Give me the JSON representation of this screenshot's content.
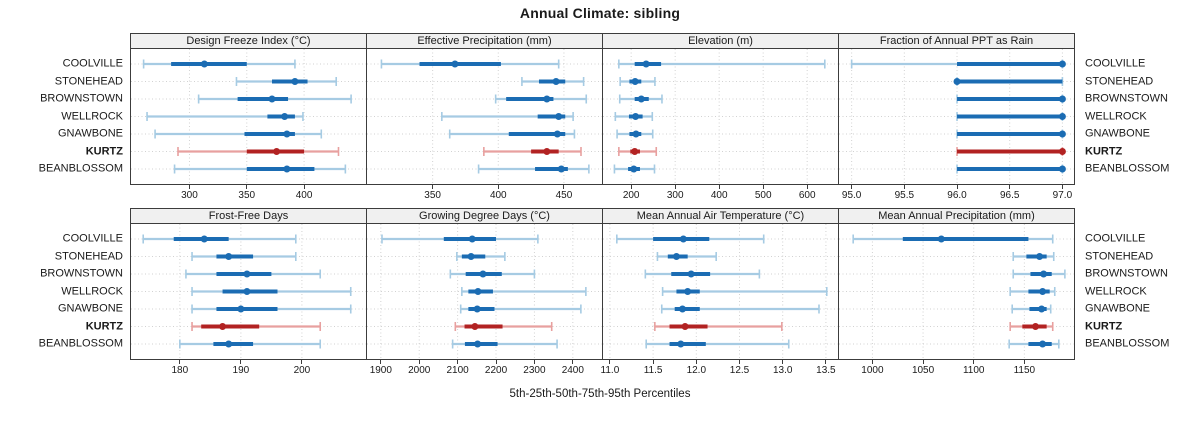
{
  "title": "Annual Climate: sibling",
  "caption": "5th-25th-50th-75th-95th Percentiles",
  "categories": [
    "COOLVILLE",
    "STONEHEAD",
    "BROWNSTOWN",
    "WELLROCK",
    "GNAWBONE",
    "KURTZ",
    "BEANBLOSSOM"
  ],
  "highlight_category": "KURTZ",
  "colors": {
    "normal_dark": "#1b6cb3",
    "normal_light": "#a6cbe3",
    "highlight_dark": "#b22222",
    "highlight_light": "#e8a09f",
    "header_bg": "#f0f0f0",
    "panel_border": "#3c3c3c",
    "grid": "#d2d2d2",
    "text": "#1a1a1a"
  },
  "chart_data": {
    "type": "dotplot",
    "subtype": "percentile-interval-trellis",
    "percentile_labels": [
      "5th",
      "25th",
      "50th",
      "75th",
      "95th"
    ],
    "layout": {
      "rows": 2,
      "cols": 4,
      "grid": true,
      "legend": "none"
    },
    "panels": [
      {
        "title": "Design Freeze Index (°C)",
        "row": 0,
        "range": [
          249,
          454
        ],
        "ticks": {
          "values": [
            300,
            350,
            400
          ],
          "labels": [
            "300",
            "350",
            "400"
          ]
        },
        "series": {
          "COOLVILLE": [
            260,
            284,
            313,
            350,
            392
          ],
          "STONEHEAD": [
            341,
            372,
            392,
            403,
            428
          ],
          "BROWNSTOWN": [
            308,
            342,
            372,
            386,
            441
          ],
          "WELLROCK": [
            263,
            368,
            383,
            392,
            399
          ],
          "GNAWBONE": [
            270,
            348,
            385,
            392,
            415
          ],
          "KURTZ": [
            290,
            350,
            376,
            400,
            430
          ],
          "BEANBLOSSOM": [
            287,
            350,
            385,
            409,
            436
          ]
        }
      },
      {
        "title": "Effective Precipitation (mm)",
        "row": 0,
        "range": [
          300,
          479
        ],
        "ticks": {
          "values": [
            350,
            400,
            450
          ],
          "labels": [
            "350",
            "400",
            "450"
          ]
        },
        "series": {
          "COOLVILLE": [
            311,
            340,
            367,
            402,
            446
          ],
          "STONEHEAD": [
            418,
            431,
            444,
            451,
            465
          ],
          "BROWNSTOWN": [
            398,
            406,
            437,
            442,
            467
          ],
          "WELLROCK": [
            357,
            430,
            446,
            451,
            457
          ],
          "GNAWBONE": [
            363,
            408,
            445,
            451,
            458
          ],
          "KURTZ": [
            389,
            425,
            437,
            446,
            463
          ],
          "BEANBLOSSOM": [
            385,
            428,
            448,
            453,
            469
          ]
        }
      },
      {
        "title": "Elevation (m)",
        "row": 0,
        "range": [
          136,
          670
        ],
        "ticks": {
          "values": [
            200,
            300,
            400,
            500,
            600
          ],
          "labels": [
            "200",
            "300",
            "400",
            "500",
            "600"
          ]
        },
        "series": {
          "COOLVILLE": [
            172,
            208,
            234,
            268,
            640
          ],
          "STONEHEAD": [
            175,
            196,
            209,
            223,
            254
          ],
          "BROWNSTOWN": [
            174,
            208,
            223,
            240,
            270
          ],
          "WELLROCK": [
            164,
            195,
            210,
            226,
            248
          ],
          "GNAWBONE": [
            168,
            196,
            211,
            223,
            249
          ],
          "KURTZ": [
            172,
            198,
            208,
            220,
            257
          ],
          "BEANBLOSSOM": [
            162,
            193,
            206,
            220,
            253
          ]
        }
      },
      {
        "title": "Fraction of Annual PPT as Rain",
        "row": 0,
        "range": [
          94.88,
          97.11
        ],
        "ticks": {
          "values": [
            95,
            95.5,
            96,
            96.5,
            97
          ],
          "labels": [
            "95.0",
            "95.5",
            "96.0",
            "96.5",
            "97.0"
          ]
        },
        "series": {
          "COOLVILLE": [
            95,
            96,
            97,
            97,
            97
          ],
          "STONEHEAD": [
            96,
            96,
            96,
            97,
            97
          ],
          "BROWNSTOWN": [
            96,
            96,
            97,
            97,
            97
          ],
          "WELLROCK": [
            96,
            96,
            97,
            97,
            97
          ],
          "GNAWBONE": [
            96,
            96,
            97,
            97,
            97
          ],
          "KURTZ": [
            96,
            96,
            97,
            97,
            97
          ],
          "BEANBLOSSOM": [
            96,
            96,
            97,
            97,
            97
          ]
        }
      },
      {
        "title": "Frost-Free Days",
        "row": 1,
        "range": [
          172,
          210.5
        ],
        "ticks": {
          "values": [
            180,
            190,
            200
          ],
          "labels": [
            "180",
            "190",
            "200"
          ]
        },
        "series": {
          "COOLVILLE": [
            174,
            179,
            184,
            188,
            199
          ],
          "STONEHEAD": [
            182,
            186,
            188,
            192,
            199
          ],
          "BROWNSTOWN": [
            181,
            186,
            191,
            195,
            203
          ],
          "WELLROCK": [
            182,
            187,
            191,
            196,
            208
          ],
          "GNAWBONE": [
            182,
            186,
            190,
            196,
            208
          ],
          "KURTZ": [
            182,
            183.5,
            187,
            193,
            203
          ],
          "BEANBLOSSOM": [
            180,
            185.5,
            188,
            192,
            203
          ]
        }
      },
      {
        "title": "Growing Degree Days (°C)",
        "row": 1,
        "range": [
          1864,
          2476
        ],
        "ticks": {
          "values": [
            1900,
            2000,
            2100,
            2200,
            2300,
            2400
          ],
          "labels": [
            "1900",
            "2000",
            "2100",
            "2200",
            "2300",
            "2400"
          ]
        },
        "series": {
          "COOLVILLE": [
            1903,
            2064,
            2138,
            2200,
            2309
          ],
          "STONEHEAD": [
            2098,
            2111,
            2135,
            2172,
            2223
          ],
          "BROWNSTOWN": [
            2081,
            2121,
            2166,
            2215,
            2300
          ],
          "WELLROCK": [
            2111,
            2128,
            2153,
            2192,
            2434
          ],
          "GNAWBONE": [
            2108,
            2128,
            2151,
            2196,
            2421
          ],
          "KURTZ": [
            2094,
            2118,
            2145,
            2217,
            2345
          ],
          "BEANBLOSSOM": [
            2087,
            2119,
            2152,
            2204,
            2359
          ]
        }
      },
      {
        "title": "Mean Annual Air Temperature (°C)",
        "row": 1,
        "range": [
          10.92,
          13.64
        ],
        "ticks": {
          "values": [
            11,
            11.5,
            12,
            12.5,
            13,
            13.5
          ],
          "labels": [
            "11.0",
            "11.5",
            "12.0",
            "12.5",
            "13.0",
            "13.5"
          ]
        },
        "series": {
          "COOLVILLE": [
            11.08,
            11.5,
            11.85,
            12.15,
            12.78
          ],
          "STONEHEAD": [
            11.55,
            11.67,
            11.77,
            11.9,
            12.23
          ],
          "BROWNSTOWN": [
            11.41,
            11.71,
            11.94,
            12.16,
            12.73
          ],
          "WELLROCK": [
            11.61,
            11.77,
            11.9,
            12.04,
            13.51
          ],
          "GNAWBONE": [
            11.6,
            11.75,
            11.84,
            12.04,
            13.42
          ],
          "KURTZ": [
            11.52,
            11.69,
            11.87,
            12.13,
            12.99
          ],
          "BEANBLOSSOM": [
            11.42,
            11.69,
            11.82,
            12.11,
            13.07
          ]
        }
      },
      {
        "title": "Mean Annual Precipitation (mm)",
        "row": 1,
        "range": [
          967,
          1199
        ],
        "ticks": {
          "values": [
            1000,
            1050,
            1100,
            1150
          ],
          "labels": [
            "1000",
            "1050",
            "1100",
            "1150"
          ]
        },
        "series": {
          "COOLVILLE": [
            981,
            1030,
            1068,
            1154,
            1178
          ],
          "STONEHEAD": [
            1139,
            1152,
            1165,
            1172,
            1179
          ],
          "BROWNSTOWN": [
            1139,
            1156,
            1169,
            1177,
            1190
          ],
          "WELLROCK": [
            1136,
            1154,
            1168,
            1175,
            1180
          ],
          "GNAWBONE": [
            1138,
            1155,
            1167,
            1172,
            1176
          ],
          "KURTZ": [
            1136,
            1148,
            1161,
            1172,
            1178
          ],
          "BEANBLOSSOM": [
            1135,
            1154,
            1168,
            1177,
            1184
          ]
        }
      }
    ]
  }
}
